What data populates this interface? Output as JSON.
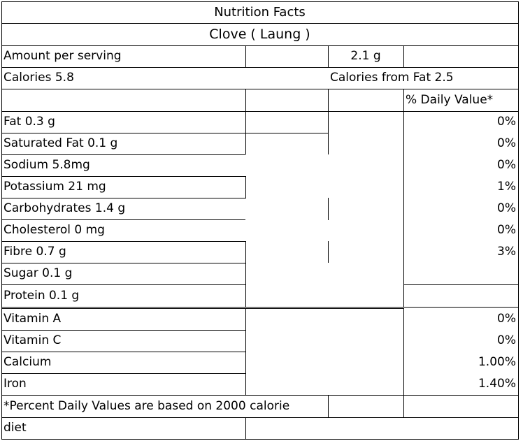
{
  "header": {
    "title": "Nutrition Facts",
    "item": "Clove ( Laung )"
  },
  "serving": {
    "label": "Amount per serving",
    "size": "2.1  g"
  },
  "calories": {
    "label": "Calories 5.8",
    "from_fat": "Calories from Fat 2.5"
  },
  "dv_header": "% Daily Value*",
  "nutrients": [
    {
      "label": "Fat 0.3  g",
      "dv": "0%"
    },
    {
      "label": "Saturated Fat 0.1 g",
      "dv": "0%"
    },
    {
      "label": "Sodium 5.8mg",
      "dv": "0%"
    },
    {
      "label": "Potassium 21 mg",
      "dv": "1%"
    },
    {
      "label": "Carbohydrates 1.4 g",
      "dv": "0%"
    },
    {
      "label": "Cholesterol 0 mg",
      "dv": "0%"
    },
    {
      "label": "Fibre 0.7 g",
      "dv": "3%"
    },
    {
      "label": "Sugar 0.1 g",
      "dv": ""
    },
    {
      "label": "Protein 0.1 g",
      "dv": ""
    }
  ],
  "vitamins": [
    {
      "label": "Vitamin A",
      "dv": "0%"
    },
    {
      "label": "Vitamin C",
      "dv": "0%"
    },
    {
      "label": "Calcium",
      "dv": "1.00%"
    },
    {
      "label": "Iron",
      "dv": "1.40%"
    }
  ],
  "footnote": {
    "line1": "*Percent Daily Values are based on 2000 calorie",
    "line2": "diet"
  }
}
